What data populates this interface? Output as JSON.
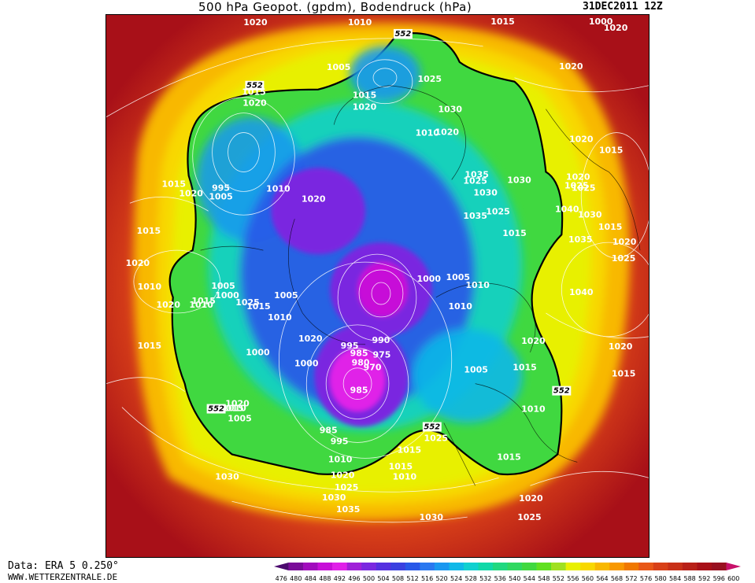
{
  "header": {
    "title": "500 hPa Geopot. (gpdm), Bodendruck (hPa)",
    "datetime": "31DEC2011 12Z"
  },
  "footer": {
    "data_source": "Data: ERA 5 0.250°",
    "website": "WWW.WETTERZENTRALE.DE"
  },
  "legend": {
    "values": [
      "476",
      "480",
      "484",
      "488",
      "492",
      "496",
      "500",
      "504",
      "508",
      "512",
      "516",
      "520",
      "524",
      "528",
      "532",
      "536",
      "540",
      "544",
      "548",
      "552",
      "556",
      "560",
      "564",
      "568",
      "572",
      "576",
      "580",
      "584",
      "588",
      "592",
      "596",
      "600"
    ],
    "colors": [
      "#4b0a6e",
      "#7a0c99",
      "#a10bbd",
      "#c70fd8",
      "#e020e8",
      "#a020d8",
      "#7a28e0",
      "#5530e0",
      "#3a40e0",
      "#2858e8",
      "#2a78f0",
      "#1a98f0",
      "#10b8e8",
      "#10d0d0",
      "#10d8a8",
      "#20d880",
      "#30d860",
      "#40d840",
      "#60e020",
      "#a0e020",
      "#e8f000",
      "#f8d800",
      "#f8b800",
      "#f89800",
      "#f07800",
      "#e85818",
      "#d84018",
      "#c83018",
      "#b82018",
      "#a81018",
      "#981020",
      "#c8106a"
    ]
  },
  "isobar_labels": [
    "1020",
    "1010",
    "1015",
    "1000",
    "1005",
    "1015",
    "1020",
    "1025",
    "1030",
    "1020",
    "1010",
    "1015",
    "1020",
    "995",
    "1005",
    "1010",
    "1015",
    "1020",
    "1025",
    "1035",
    "1030",
    "1030",
    "1035",
    "1040",
    "1020",
    "1015",
    "1020",
    "1025",
    "1015",
    "1020",
    "1025",
    "1010",
    "1020",
    "1015",
    "1010",
    "1005",
    "1000",
    "1020",
    "1005",
    "1000",
    "1010",
    "1015",
    "1010",
    "1005",
    "1000",
    "990",
    "995",
    "985",
    "975",
    "980",
    "970",
    "1000",
    "985",
    "985",
    "995",
    "1010",
    "1020",
    "1025",
    "1030",
    "1035",
    "1015",
    "1020",
    "1030",
    "1025",
    "1005",
    "1015",
    "1010",
    "1015",
    "1020",
    "1015",
    "1025",
    "1030",
    "1035",
    "1040",
    "1020",
    "1015",
    "1020",
    "1020",
    "1030",
    "1025",
    "1020",
    "1025",
    "1010",
    "1020",
    "1015",
    "1010",
    "1015",
    "1025",
    "1015",
    "1020",
    "1005",
    "1010",
    "1015"
  ],
  "contour_552_labels": [
    "552",
    "552",
    "552",
    "552",
    "552"
  ],
  "colors": {
    "background": "#b01818",
    "contour_552": "#000000",
    "isobars": "#ffffff"
  }
}
